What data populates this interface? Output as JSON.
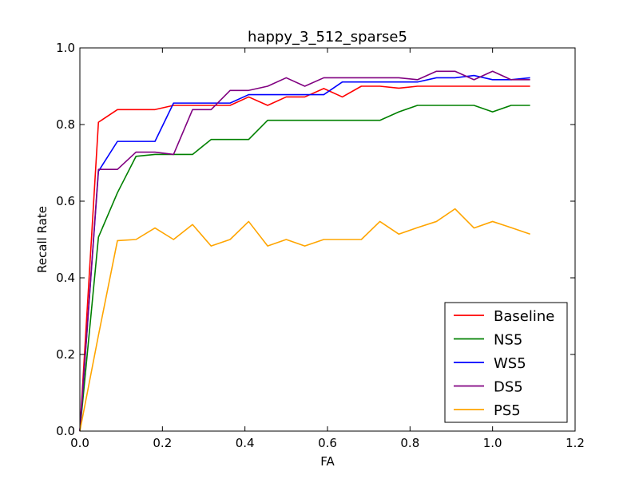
{
  "chart_data": {
    "type": "line",
    "title": "happy_3_512_sparse5",
    "xlabel": "FA",
    "ylabel": "Recall Rate",
    "xlim": [
      0.0,
      1.2
    ],
    "ylim": [
      0.0,
      1.0
    ],
    "xticks": [
      "0.0",
      "0.2",
      "0.4",
      "0.6",
      "0.8",
      "1.0",
      "1.2"
    ],
    "yticks": [
      "0.0",
      "0.2",
      "0.4",
      "0.6",
      "0.8",
      "1.0"
    ],
    "grid": false,
    "legend_position": "bottom-right",
    "series": [
      {
        "name": "Baseline",
        "color": "#ff0000",
        "x": [
          0.0,
          0.045,
          0.091,
          0.136,
          0.182,
          0.227,
          0.273,
          0.318,
          0.364,
          0.409,
          0.455,
          0.5,
          0.545,
          0.591,
          0.636,
          0.682,
          0.727,
          0.773,
          0.818,
          0.864,
          0.909,
          0.955,
          1.0,
          1.045,
          1.091
        ],
        "y": [
          0.0,
          0.806,
          0.839,
          0.839,
          0.839,
          0.85,
          0.85,
          0.85,
          0.85,
          0.872,
          0.85,
          0.872,
          0.872,
          0.894,
          0.872,
          0.9,
          0.9,
          0.895,
          0.9,
          0.9,
          0.9,
          0.9,
          0.9,
          0.9,
          0.9
        ]
      },
      {
        "name": "NS5",
        "color": "#008000",
        "x": [
          0.0,
          0.045,
          0.091,
          0.136,
          0.182,
          0.227,
          0.273,
          0.318,
          0.364,
          0.409,
          0.455,
          0.5,
          0.545,
          0.591,
          0.636,
          0.682,
          0.727,
          0.773,
          0.818,
          0.864,
          0.909,
          0.955,
          1.0,
          1.045,
          1.091
        ],
        "y": [
          0.0,
          0.506,
          0.622,
          0.717,
          0.722,
          0.722,
          0.722,
          0.761,
          0.761,
          0.761,
          0.811,
          0.811,
          0.811,
          0.811,
          0.811,
          0.811,
          0.811,
          0.833,
          0.85,
          0.85,
          0.85,
          0.85,
          0.833,
          0.85,
          0.85
        ]
      },
      {
        "name": "WS5",
        "color": "#0000ff",
        "x": [
          0.0,
          0.045,
          0.091,
          0.136,
          0.182,
          0.227,
          0.273,
          0.318,
          0.364,
          0.409,
          0.455,
          0.5,
          0.545,
          0.591,
          0.636,
          0.682,
          0.727,
          0.773,
          0.818,
          0.864,
          0.909,
          0.955,
          1.0,
          1.045,
          1.091
        ],
        "y": [
          0.0,
          0.678,
          0.756,
          0.756,
          0.756,
          0.856,
          0.856,
          0.856,
          0.856,
          0.878,
          0.878,
          0.878,
          0.878,
          0.878,
          0.911,
          0.911,
          0.911,
          0.911,
          0.911,
          0.922,
          0.922,
          0.928,
          0.917,
          0.917,
          0.922
        ]
      },
      {
        "name": "DS5",
        "color": "#800080",
        "x": [
          0.0,
          0.045,
          0.091,
          0.136,
          0.182,
          0.227,
          0.273,
          0.318,
          0.364,
          0.409,
          0.455,
          0.5,
          0.545,
          0.591,
          0.636,
          0.682,
          0.727,
          0.773,
          0.818,
          0.864,
          0.909,
          0.955,
          1.0,
          1.045,
          1.091
        ],
        "y": [
          0.0,
          0.683,
          0.683,
          0.728,
          0.728,
          0.722,
          0.839,
          0.839,
          0.889,
          0.889,
          0.9,
          0.922,
          0.9,
          0.922,
          0.922,
          0.922,
          0.922,
          0.922,
          0.917,
          0.939,
          0.939,
          0.917,
          0.939,
          0.917,
          0.917
        ]
      },
      {
        "name": "PS5",
        "color": "#ffa500",
        "x": [
          0.0,
          0.045,
          0.091,
          0.136,
          0.182,
          0.227,
          0.273,
          0.318,
          0.364,
          0.409,
          0.455,
          0.5,
          0.545,
          0.591,
          0.636,
          0.682,
          0.727,
          0.773,
          0.818,
          0.864,
          0.909,
          0.955,
          1.0,
          1.045,
          1.091
        ],
        "y": [
          0.0,
          0.25,
          0.497,
          0.5,
          0.53,
          0.5,
          0.539,
          0.483,
          0.5,
          0.547,
          0.483,
          0.5,
          0.483,
          0.5,
          0.5,
          0.5,
          0.547,
          0.514,
          0.531,
          0.547,
          0.58,
          0.53,
          0.547,
          0.531,
          0.514
        ]
      }
    ]
  }
}
